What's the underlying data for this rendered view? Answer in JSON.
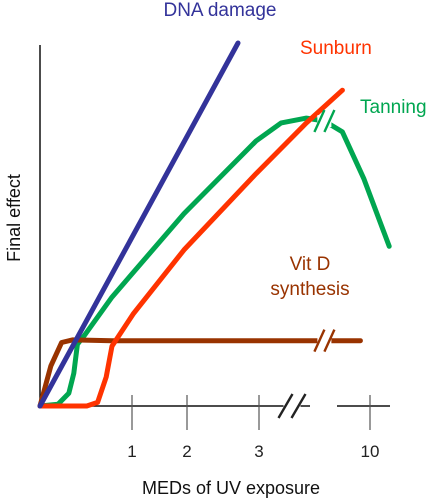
{
  "chart_data": {
    "type": "line",
    "title": "",
    "xlabel": "MEDs of UV exposure",
    "ylabel": "Final effect",
    "x_ticks": [
      "1",
      "2",
      "3",
      "10"
    ],
    "axis_break": true,
    "grid": false,
    "legend": "none",
    "series": [
      {
        "name": "DNA damage",
        "color": "#33339a",
        "points": [
          [
            0.0,
            0.0
          ],
          [
            2.75,
            10.0
          ]
        ]
      },
      {
        "name": "Sunburn",
        "color": "#ff3300",
        "points": [
          [
            0.0,
            0.0
          ],
          [
            0.65,
            0.0
          ],
          [
            0.8,
            0.1
          ],
          [
            0.92,
            0.8
          ],
          [
            1.0,
            1.65
          ],
          [
            1.3,
            2.55
          ],
          [
            2.0,
            4.3
          ],
          [
            3.0,
            6.4
          ],
          [
            3.7,
            7.8
          ],
          [
            4.2,
            8.7
          ]
        ]
      },
      {
        "name": "Tanning",
        "color": "#00a650",
        "points": [
          [
            0.0,
            0.0
          ],
          [
            0.25,
            0.05
          ],
          [
            0.4,
            0.35
          ],
          [
            0.47,
            0.9
          ],
          [
            0.52,
            1.7
          ],
          [
            0.62,
            1.95
          ],
          [
            1.0,
            3.0
          ],
          [
            2.0,
            5.3
          ],
          [
            3.0,
            7.3
          ],
          [
            3.35,
            7.8
          ],
          [
            3.7,
            7.93
          ],
          [
            3.95,
            7.85
          ],
          [
            4.2,
            7.55
          ],
          [
            4.5,
            6.25
          ],
          [
            4.85,
            4.4
          ]
        ]
      },
      {
        "name": "Vit D\nsynthesis",
        "color": "#993300",
        "points": [
          [
            0.0,
            0.0
          ],
          [
            0.15,
            1.1
          ],
          [
            0.3,
            1.75
          ],
          [
            0.45,
            1.82
          ],
          [
            1.0,
            1.8
          ],
          [
            2.0,
            1.8
          ],
          [
            3.0,
            1.8
          ],
          [
            4.0,
            1.8
          ],
          [
            4.45,
            1.8
          ]
        ]
      }
    ],
    "break_marks": [
      {
        "series": "Tanning",
        "x": 3.95,
        "y": 7.85
      },
      {
        "series": "Vit D\nsynthesis",
        "x": 3.95,
        "y": 1.8
      },
      {
        "series": "axis",
        "x": 3.5,
        "y": 0.0
      }
    ]
  }
}
